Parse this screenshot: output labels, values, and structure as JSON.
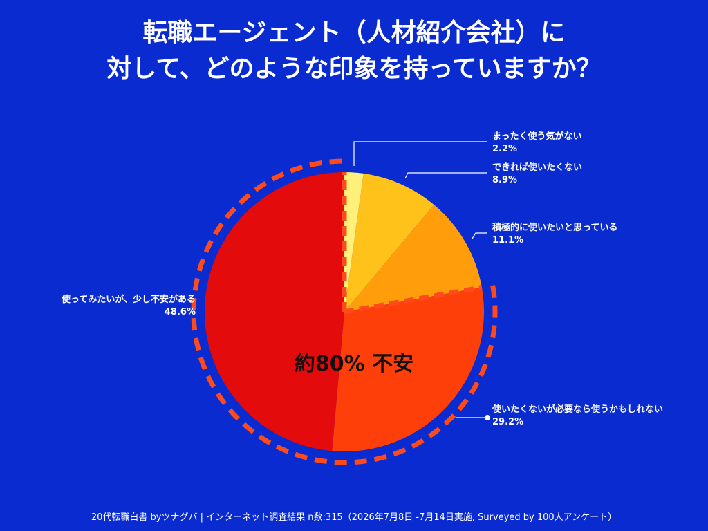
{
  "title": {
    "line1": "転職エージェント（人材紹介会社）に",
    "line2": "対して、どのような印象を持っていますか？"
  },
  "chart_data": {
    "type": "pie",
    "slices": [
      {
        "label": "まったく使う気がない",
        "value": 2.2,
        "value_label": "2.2%",
        "color": "#fff07a"
      },
      {
        "label": "できれば使いたくない",
        "value": 8.9,
        "value_label": "8.9%",
        "color": "#ffc21a"
      },
      {
        "label": "積極的に使いたいと思っている",
        "value": 11.1,
        "value_label": "11.1%",
        "color": "#ff9d0a"
      },
      {
        "label": "使いたくないが必要なら使うかもしれない",
        "value": 29.2,
        "value_label": "29.2%",
        "color": "#ff3f0a"
      },
      {
        "label": "使ってみたいが、少し不安がある",
        "value": 48.6,
        "value_label": "48.6%",
        "color": "#e30b0b"
      }
    ],
    "start_angle": "12 o'clock",
    "direction": "clockwise",
    "annotation": "約80% 不安"
  },
  "colors": {
    "background": "#0a2bd0",
    "highlight_dash": "#ff4a1c"
  },
  "footer": "20代転職白書 byツナグバ | インターネット調査結果 n数:315（2026年7月8日 -7月14日実施, Surveyed by 100人アンケート）"
}
